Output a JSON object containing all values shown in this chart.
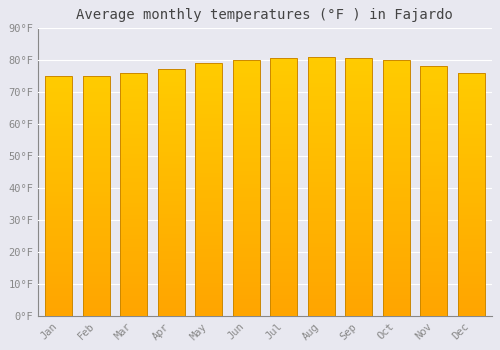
{
  "title": "Average monthly temperatures (°F ) in Fajardo",
  "months": [
    "Jan",
    "Feb",
    "Mar",
    "Apr",
    "May",
    "Jun",
    "Jul",
    "Aug",
    "Sep",
    "Oct",
    "Nov",
    "Dec"
  ],
  "values": [
    75,
    75,
    76,
    77,
    79,
    80,
    80.5,
    81,
    80.5,
    80,
    78,
    76
  ],
  "bar_color_top": "#FFCC00",
  "bar_color_bottom": "#FFA500",
  "bar_edge_color": "#CC8800",
  "background_color": "#e8e8f0",
  "plot_bg_color": "#e8e8f0",
  "grid_color": "#ffffff",
  "tick_label_color": "#888888",
  "title_color": "#444444",
  "ylim": [
    0,
    90
  ],
  "yticks": [
    0,
    10,
    20,
    30,
    40,
    50,
    60,
    70,
    80,
    90
  ],
  "ytick_labels": [
    "0°F",
    "10°F",
    "20°F",
    "30°F",
    "40°F",
    "50°F",
    "60°F",
    "70°F",
    "80°F",
    "90°F"
  ],
  "font_family": "monospace",
  "title_fontsize": 10,
  "tick_fontsize": 7.5,
  "bar_width": 0.72,
  "figsize": [
    5.0,
    3.5
  ],
  "dpi": 100
}
